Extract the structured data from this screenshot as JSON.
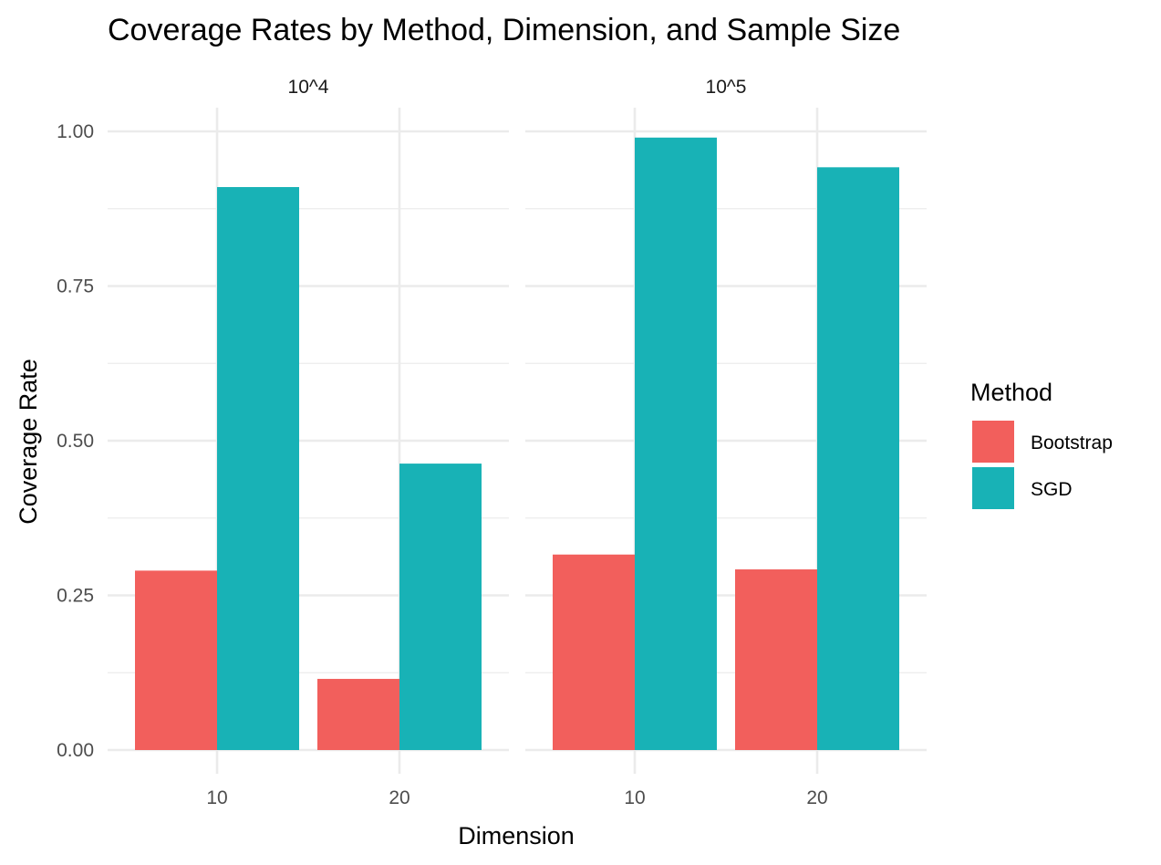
{
  "chart_data": {
    "type": "bar",
    "title": "Coverage Rates by Method, Dimension, and Sample Size",
    "xlabel": "Dimension",
    "ylabel": "Coverage Rate",
    "ylim": [
      0,
      1
    ],
    "yticks": [
      "0.00",
      "0.25",
      "0.50",
      "0.75",
      "1.00"
    ],
    "grid": true,
    "facets": [
      {
        "label": "10^4",
        "categories": [
          "10",
          "20"
        ],
        "series": [
          {
            "name": "Bootstrap",
            "values": [
              0.29,
              0.115
            ]
          },
          {
            "name": "SGD",
            "values": [
              0.91,
              0.463
            ]
          }
        ]
      },
      {
        "label": "10^5",
        "categories": [
          "10",
          "20"
        ],
        "series": [
          {
            "name": "Bootstrap",
            "values": [
              0.316,
              0.292
            ]
          },
          {
            "name": "SGD",
            "values": [
              0.99,
              0.942
            ]
          }
        ]
      }
    ],
    "legend": {
      "title": "Method",
      "position": "right",
      "entries": [
        "Bootstrap",
        "SGD"
      ]
    },
    "colors": {
      "Bootstrap": "#F25F5C",
      "SGD": "#18B2B6"
    }
  }
}
